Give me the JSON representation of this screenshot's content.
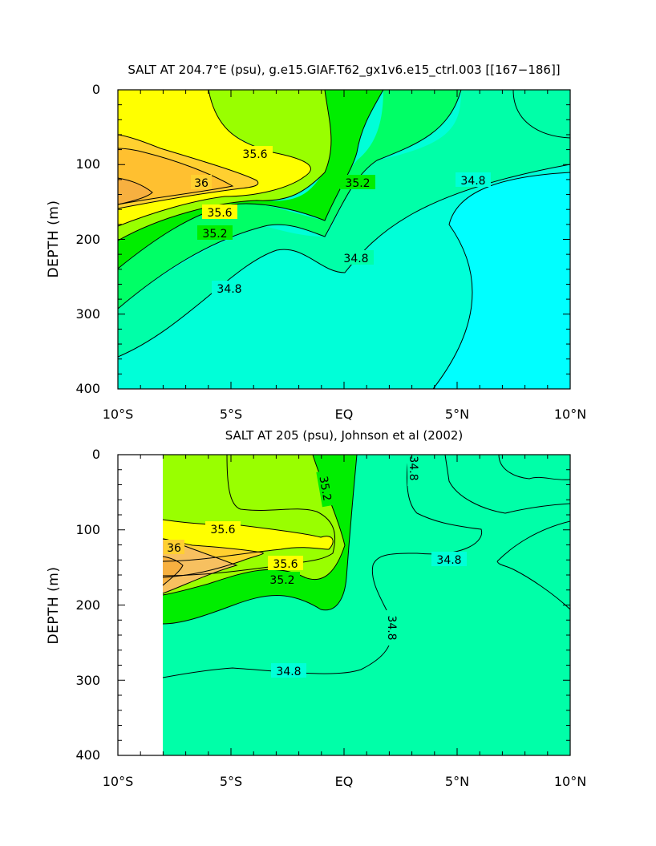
{
  "chart_data": [
    {
      "type": "contour",
      "title": "SALT AT 204.7°E (psu), g.e15.GIAF.T62_gx1v6.e15_ctrl.003 [[167−186]]",
      "xlabel": "",
      "ylabel": "DEPTH (m)",
      "xlim": [
        -10,
        10
      ],
      "ylim": [
        400,
        0
      ],
      "x_ticks": [
        -10,
        -5,
        0,
        5,
        10
      ],
      "x_tick_labels": [
        "10°S",
        "5°S",
        "EQ",
        "5°N",
        "10°N"
      ],
      "y_ticks": [
        0,
        100,
        200,
        300,
        400
      ],
      "y_tick_labels": [
        "0",
        "100",
        "200",
        "300",
        "400"
      ],
      "contour_levels": [
        34.6,
        34.8,
        35.0,
        35.2,
        35.4,
        35.6,
        35.8,
        36.0,
        36.2
      ],
      "contour_labels": [
        "35.6",
        "36",
        "35.6",
        "35.2",
        "35.2",
        "34.8",
        "34.8",
        "34.8"
      ],
      "max_salinity_core": {
        "x": -10,
        "depth": 140,
        "value": 36.2
      }
    },
    {
      "type": "contour",
      "title": "SALT AT 205 (psu), Johnson et al (2002)",
      "xlabel": "",
      "ylabel": "DEPTH (m)",
      "xlim": [
        -10,
        10
      ],
      "ylim": [
        400,
        0
      ],
      "data_start_x": -8,
      "x_ticks": [
        -10,
        -5,
        0,
        5,
        10
      ],
      "x_tick_labels": [
        "10°S",
        "5°S",
        "EQ",
        "5°N",
        "10°N"
      ],
      "y_ticks": [
        0,
        100,
        200,
        300,
        400
      ],
      "y_tick_labels": [
        "0",
        "100",
        "200",
        "300",
        "400"
      ],
      "contour_levels": [
        34.6,
        34.8,
        35.0,
        35.2,
        35.4,
        35.6,
        35.8,
        36.0,
        36.2
      ],
      "contour_labels": [
        "35.6",
        "36",
        "35.6",
        "35.2",
        "35.2",
        "34.8",
        "34.8",
        "34.8",
        "34.8"
      ],
      "max_salinity_core": {
        "x": -8,
        "depth": 145,
        "value": 36.2
      }
    }
  ],
  "colors": {
    "band_lt_34_6": "#00ffff",
    "band_34_6": "#00ffd8",
    "band_34_8": "#00ffa8",
    "band_35_0": "#00ff66",
    "band_35_2": "#00ee00",
    "band_35_4": "#99ff00",
    "band_35_6": "#ffff00",
    "band_35_8": "#ffd030",
    "band_36_0": "#f7b040",
    "band_top_right_obs": "#33eeff"
  }
}
